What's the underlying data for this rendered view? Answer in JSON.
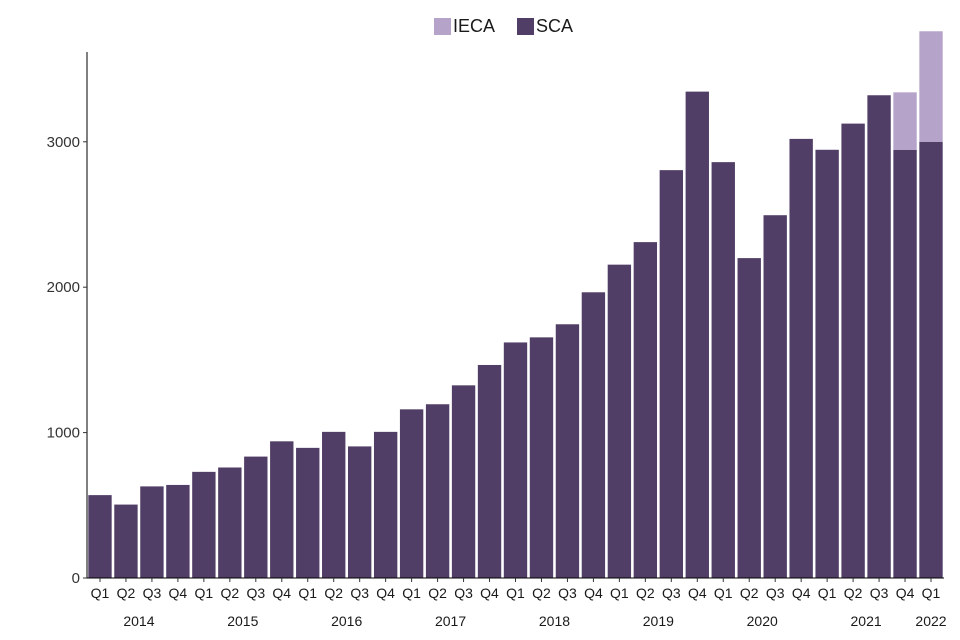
{
  "chart_data": {
    "type": "bar",
    "stacked": true,
    "title": "",
    "xlabel": "",
    "ylabel": "",
    "ylim": [
      0,
      3700
    ],
    "y_ticks": [
      0,
      1000,
      2000,
      3000
    ],
    "legend_position": "top",
    "categories": [
      "Q1",
      "Q2",
      "Q3",
      "Q4",
      "Q1",
      "Q2",
      "Q3",
      "Q4",
      "Q1",
      "Q2",
      "Q3",
      "Q4",
      "Q1",
      "Q2",
      "Q3",
      "Q4",
      "Q1",
      "Q2",
      "Q3",
      "Q4",
      "Q1",
      "Q2",
      "Q3",
      "Q4",
      "Q1",
      "Q2",
      "Q3",
      "Q4",
      "Q1",
      "Q2",
      "Q3",
      "Q4",
      "Q1"
    ],
    "year_groups": [
      {
        "label": "2014",
        "start": 0,
        "end": 3
      },
      {
        "label": "2015",
        "start": 4,
        "end": 7
      },
      {
        "label": "2016",
        "start": 8,
        "end": 11
      },
      {
        "label": "2017",
        "start": 12,
        "end": 15
      },
      {
        "label": "2018",
        "start": 16,
        "end": 19
      },
      {
        "label": "2019",
        "start": 20,
        "end": 23
      },
      {
        "label": "2020",
        "start": 24,
        "end": 27
      },
      {
        "label": "2021",
        "start": 28,
        "end": 31
      },
      {
        "label": "2022",
        "start": 32,
        "end": 32
      }
    ],
    "series": [
      {
        "name": "SCA",
        "color": "#513E66",
        "values": [
          570,
          505,
          630,
          640,
          730,
          760,
          835,
          940,
          895,
          1005,
          905,
          1005,
          1160,
          1195,
          1325,
          1465,
          1620,
          1655,
          1745,
          1965,
          2155,
          2310,
          2805,
          3345,
          2860,
          2200,
          2495,
          3020,
          2945,
          3125,
          3320,
          2945,
          3000
        ]
      },
      {
        "name": "IECA",
        "color": "#B6A3C9",
        "values": [
          0,
          0,
          0,
          0,
          0,
          0,
          0,
          0,
          0,
          0,
          0,
          0,
          0,
          0,
          0,
          0,
          0,
          0,
          0,
          0,
          0,
          0,
          0,
          0,
          0,
          0,
          0,
          0,
          0,
          0,
          0,
          395,
          760
        ]
      }
    ]
  },
  "legend": {
    "items": [
      {
        "label": "IECA",
        "color": "#B6A3C9"
      },
      {
        "label": "SCA",
        "color": "#513E66"
      }
    ]
  }
}
